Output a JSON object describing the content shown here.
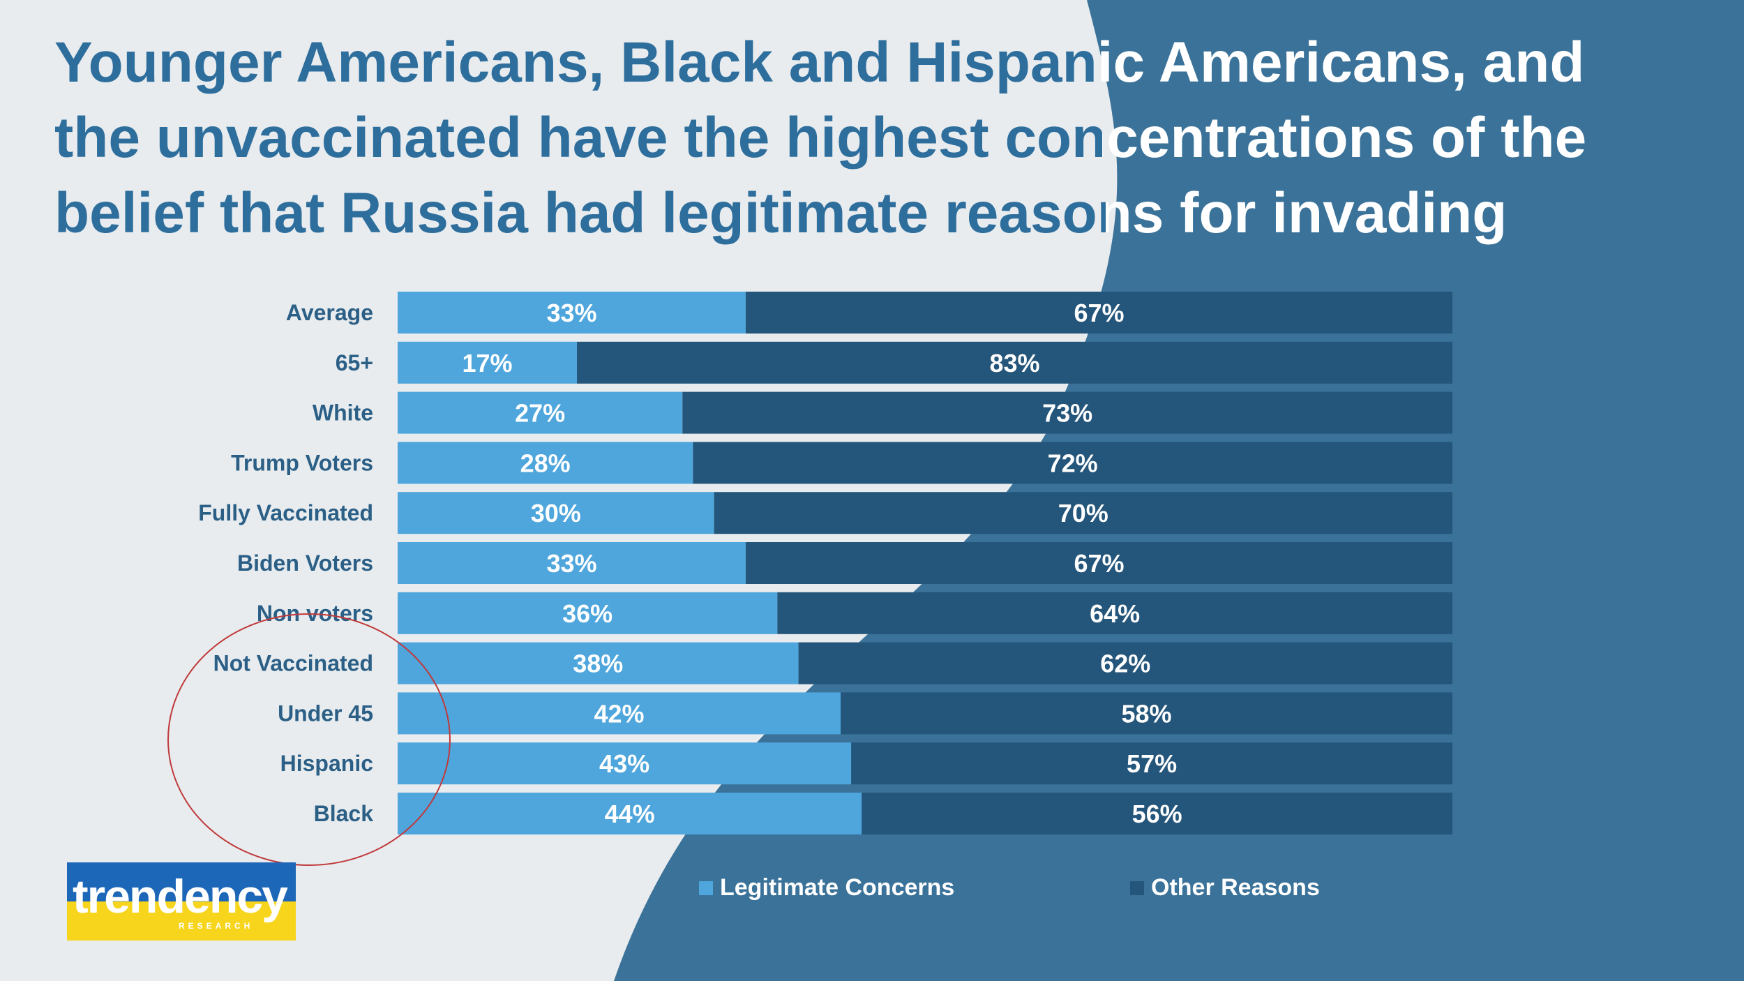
{
  "title_lines": [
    "Younger Americans, Black and Hispanic Americans, and",
    "the unvaccinated have the highest concentrations of the",
    "belief that Russia had legitimate reasons for invading"
  ],
  "colors": {
    "title": "#2e6e9c",
    "light_bg": "#e8ecef",
    "dark_bg": "#3a7299",
    "legitimate": "#4fa6dc",
    "other": "#24557a",
    "category_text": "#2b5f86",
    "annotation_circle": "#c0393b"
  },
  "chart_data": {
    "type": "bar",
    "orientation": "horizontal",
    "stacked": true,
    "percent_scale": true,
    "categories": [
      "Average",
      "65+",
      "White",
      "Trump Voters",
      "Fully Vaccinated",
      "Biden Voters",
      "Non voters",
      "Not Vaccinated",
      "Under 45",
      "Hispanic",
      "Black"
    ],
    "series": [
      {
        "name": "Legitimate Concerns",
        "values": [
          33,
          17,
          27,
          28,
          30,
          33,
          36,
          38,
          42,
          43,
          44
        ]
      },
      {
        "name": "Other Reasons",
        "values": [
          67,
          83,
          73,
          72,
          70,
          67,
          64,
          62,
          58,
          57,
          56
        ]
      }
    ],
    "data_labels": [
      [
        "33%",
        "17%",
        "27%",
        "28%",
        "30%",
        "33%",
        "36%",
        "38%",
        "42%",
        "43%",
        "44%"
      ],
      [
        "67%",
        "83%",
        "73%",
        "72%",
        "70%",
        "67%",
        "64%",
        "62%",
        "58%",
        "57%",
        "56%"
      ]
    ],
    "xlim": [
      0,
      100
    ],
    "legend_position": "bottom",
    "annotation": "circle around Not Vaccinated, Under 45, Hispanic, Black"
  },
  "logo": {
    "name": "trendency",
    "tagline": "RESEARCH"
  }
}
